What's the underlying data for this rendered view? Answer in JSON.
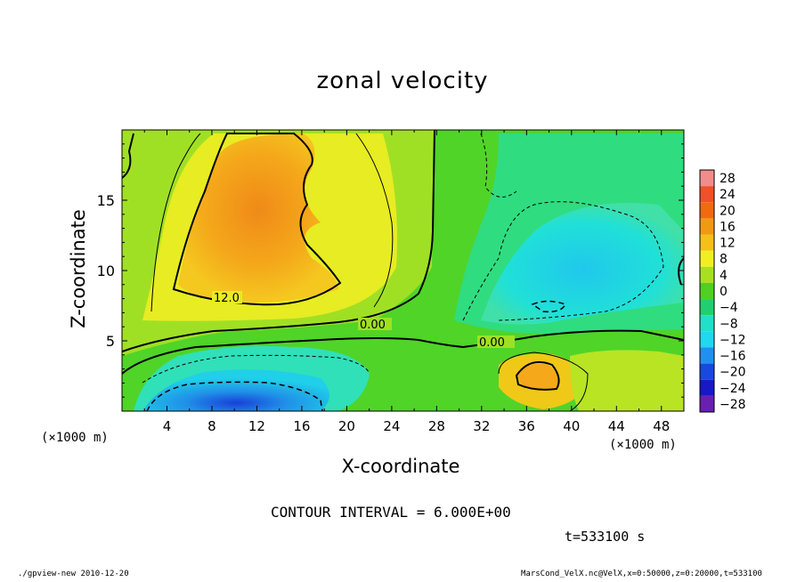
{
  "chart_data": {
    "type": "heatmap",
    "title": "zonal velocity",
    "xlabel": "X-coordinate",
    "ylabel": "Z-coordinate",
    "x_unit": "(×1000 m)",
    "x_ticks": [
      4,
      8,
      12,
      16,
      20,
      24,
      28,
      32,
      36,
      40,
      44,
      48
    ],
    "y_ticks": [
      5,
      10,
      15
    ],
    "xlim": [
      0,
      50
    ],
    "ylim": [
      0,
      20
    ],
    "colorbar_levels": [
      28,
      24,
      20,
      16,
      12,
      8,
      4,
      0,
      -4,
      -8,
      -12,
      -16,
      -20,
      -24,
      -28
    ],
    "colorbar_labels": [
      "28",
      "24",
      "20",
      "16",
      "12",
      "8",
      "4",
      "0",
      "−4",
      "−8",
      "−12",
      "−16",
      "−20",
      "−24",
      "−28"
    ],
    "colorbar_colors": [
      "#f08c8c",
      "#f0502a",
      "#f06a10",
      "#f09a14",
      "#f5c018",
      "#f2ef20",
      "#a8e020",
      "#50d020",
      "#20d070",
      "#20e0c8",
      "#20d8f0",
      "#2090f0",
      "#1848e0",
      "#1818c8",
      "#6820b0"
    ],
    "contour_labels": [
      "12.0",
      "0.00",
      "0.00"
    ],
    "contour_interval_text": "CONTOUR INTERVAL = 6.000E+00",
    "time_text": "t=533100 s",
    "grid": false
  },
  "footer": {
    "left": "./gpview-new  2010-12-20",
    "right": "MarsCond_VelX.nc@VelX,x=0:50000,z=0:20000,t=533100"
  }
}
